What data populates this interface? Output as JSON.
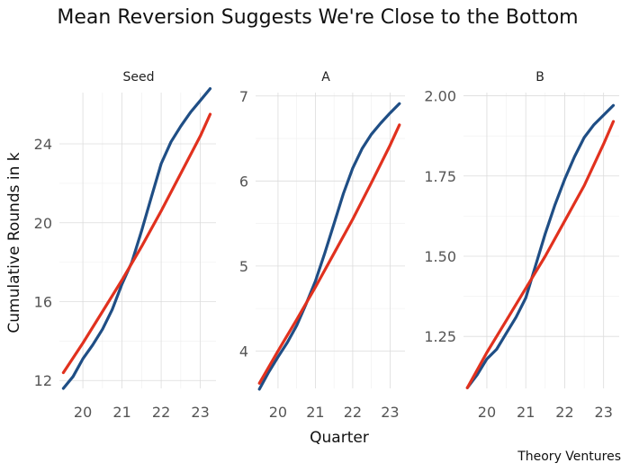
{
  "title": "Mean Reversion Suggests We're Close to the Bottom",
  "xlabel": "Quarter",
  "ylabel": "Cumulative Rounds in k",
  "caption": "Theory Ventures",
  "colors": {
    "actual": "#1f4e85",
    "trend": "#e1311e"
  },
  "chart_data": [
    {
      "type": "line",
      "panel": "Seed",
      "xticks": [
        20,
        21,
        22,
        23
      ],
      "xlim": [
        19.4,
        23.4
      ],
      "yticks": [
        12,
        16,
        20,
        24
      ],
      "ylim": [
        11.6,
        26.6
      ],
      "series": [
        {
          "color": "#1f4e85",
          "x": [
            19.5,
            19.75,
            20.0,
            20.25,
            20.5,
            20.75,
            21.0,
            21.25,
            21.5,
            21.75,
            22.0,
            22.25,
            22.5,
            22.75,
            23.0,
            23.25
          ],
          "y": [
            11.6,
            12.2,
            13.1,
            13.8,
            14.6,
            15.6,
            16.9,
            18.0,
            19.6,
            21.3,
            23.0,
            24.1,
            24.9,
            25.6,
            26.2,
            26.8
          ]
        },
        {
          "color": "#e1311e",
          "x": [
            19.5,
            20.0,
            20.5,
            21.0,
            21.5,
            22.0,
            22.5,
            23.0,
            23.25
          ],
          "y": [
            12.4,
            13.9,
            15.5,
            17.1,
            18.8,
            20.6,
            22.5,
            24.4,
            25.5
          ]
        }
      ]
    },
    {
      "type": "line",
      "panel": "A",
      "xticks": [
        20,
        21,
        22,
        23
      ],
      "xlim": [
        19.4,
        23.4
      ],
      "yticks": [
        4,
        5,
        6,
        7
      ],
      "ylim": [
        3.56,
        7.04
      ],
      "series": [
        {
          "color": "#1f4e85",
          "x": [
            19.5,
            19.75,
            20.0,
            20.25,
            20.5,
            20.75,
            21.0,
            21.25,
            21.5,
            21.75,
            22.0,
            22.25,
            22.5,
            22.75,
            23.0,
            23.25
          ],
          "y": [
            3.55,
            3.75,
            3.93,
            4.1,
            4.3,
            4.55,
            4.82,
            5.15,
            5.5,
            5.85,
            6.15,
            6.38,
            6.55,
            6.68,
            6.8,
            6.91
          ]
        },
        {
          "color": "#e1311e",
          "x": [
            19.5,
            20.0,
            20.5,
            21.0,
            21.5,
            22.0,
            22.5,
            23.0,
            23.25
          ],
          "y": [
            3.62,
            4.0,
            4.37,
            4.75,
            5.15,
            5.55,
            5.98,
            6.42,
            6.66
          ]
        }
      ]
    },
    {
      "type": "line",
      "panel": "B",
      "xticks": [
        20,
        21,
        22,
        23
      ],
      "xlim": [
        19.4,
        23.4
      ],
      "yticks": [
        1.25,
        1.5,
        1.75,
        2.0
      ],
      "ylim": [
        1.088,
        2.01
      ],
      "series": [
        {
          "color": "#1f4e85",
          "x": [
            19.5,
            19.75,
            20.0,
            20.25,
            20.5,
            20.75,
            21.0,
            21.25,
            21.5,
            21.75,
            22.0,
            22.25,
            22.5,
            22.75,
            23.0,
            23.25
          ],
          "y": [
            1.09,
            1.13,
            1.18,
            1.21,
            1.26,
            1.31,
            1.37,
            1.47,
            1.57,
            1.66,
            1.74,
            1.81,
            1.87,
            1.91,
            1.94,
            1.97
          ]
        },
        {
          "color": "#e1311e",
          "x": [
            19.5,
            20.0,
            20.5,
            21.0,
            21.5,
            22.0,
            22.5,
            23.0,
            23.25
          ],
          "y": [
            1.09,
            1.2,
            1.3,
            1.4,
            1.5,
            1.61,
            1.72,
            1.85,
            1.92
          ]
        }
      ]
    }
  ]
}
